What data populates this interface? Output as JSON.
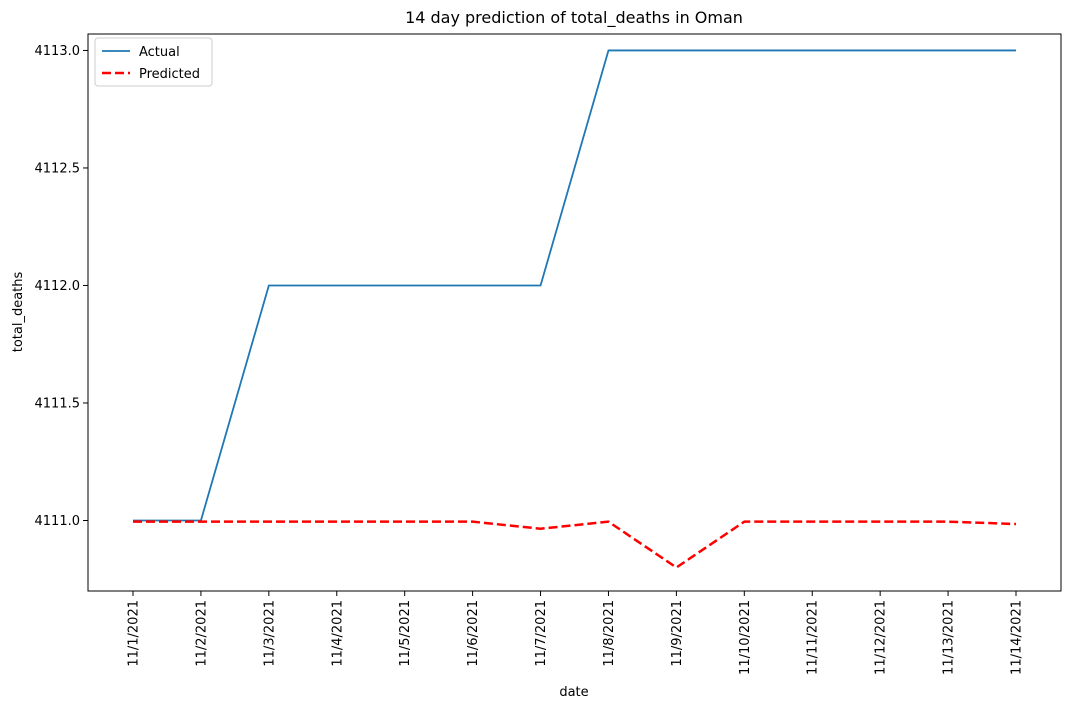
{
  "chart_data": {
    "type": "line",
    "title": "14 day prediction of total_deaths in Oman",
    "xlabel": "date",
    "ylabel": "total_deaths",
    "x": [
      "11/1/2021",
      "11/2/2021",
      "11/3/2021",
      "11/4/2021",
      "11/5/2021",
      "11/6/2021",
      "11/7/2021",
      "11/8/2021",
      "11/9/2021",
      "11/10/2021",
      "11/11/2021",
      "11/12/2021",
      "11/13/2021",
      "11/14/2021"
    ],
    "ylim": [
      4110.7,
      4113.07
    ],
    "yticks": [
      4111.0,
      4111.5,
      4112.0,
      4112.5,
      4113.0
    ],
    "ytick_labels": [
      "4111.0",
      "4111.5",
      "4112.0",
      "4112.5",
      "4113.0"
    ],
    "grid": false,
    "legend_position": "top-left",
    "series": [
      {
        "name": "Actual",
        "color": "#1f77b4",
        "style": "solid",
        "values": [
          4111,
          4111,
          4112,
          4112,
          4112,
          4112,
          4112,
          4113,
          4113,
          4113,
          4113,
          4113,
          4113,
          4113
        ]
      },
      {
        "name": "Predicted",
        "color": "#ff0000",
        "style": "dashed",
        "values": [
          4110.995,
          4110.995,
          4110.995,
          4110.995,
          4110.995,
          4110.995,
          4110.965,
          4110.995,
          4110.8,
          4110.995,
          4110.995,
          4110.995,
          4110.995,
          4110.985
        ]
      }
    ]
  }
}
